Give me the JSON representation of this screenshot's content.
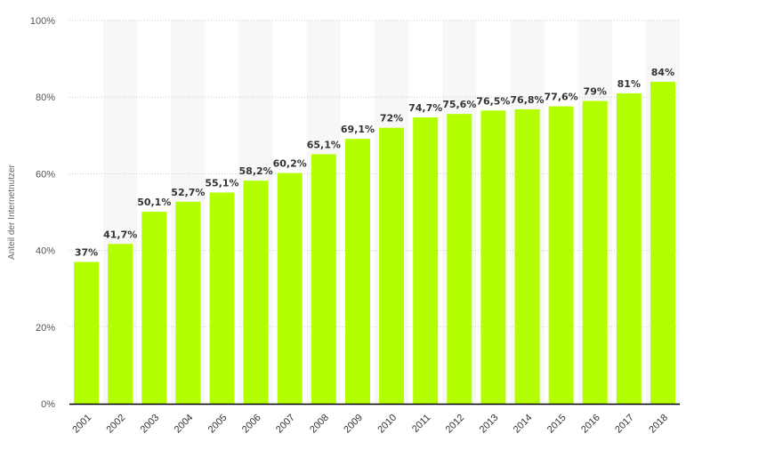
{
  "chart_data": {
    "type": "bar",
    "categories": [
      "2001",
      "2002",
      "2003",
      "2004",
      "2005",
      "2006",
      "2007",
      "2008",
      "2009",
      "2010",
      "2011",
      "2012",
      "2013",
      "2014",
      "2015",
      "2016",
      "2017",
      "2018"
    ],
    "values": [
      37,
      41.7,
      50.1,
      52.7,
      55.1,
      58.2,
      60.2,
      65.1,
      69.1,
      72,
      74.7,
      75.6,
      76.5,
      76.8,
      77.6,
      79,
      81,
      84
    ],
    "data_labels": [
      "37%",
      "41,7%",
      "50,1%",
      "52,7%",
      "55,1%",
      "58,2%",
      "60,2%",
      "65,1%",
      "69,1%",
      "72%",
      "74,7%",
      "75,6%",
      "76,5%",
      "76,8%",
      "77,6%",
      "79%",
      "81%",
      "84%"
    ],
    "ylabel": "Anteil der Internetnutzer",
    "xlabel": "",
    "ylim": [
      0,
      100
    ],
    "yticks": [
      0,
      20,
      40,
      60,
      80,
      100
    ],
    "ytick_labels": [
      "0%",
      "20%",
      "40%",
      "60%",
      "80%",
      "100%"
    ],
    "grid": true,
    "colors": {
      "bar": "#b3ff00",
      "band": "#f7f7f7",
      "grid": "#cccccc",
      "axis": "#000000"
    }
  }
}
